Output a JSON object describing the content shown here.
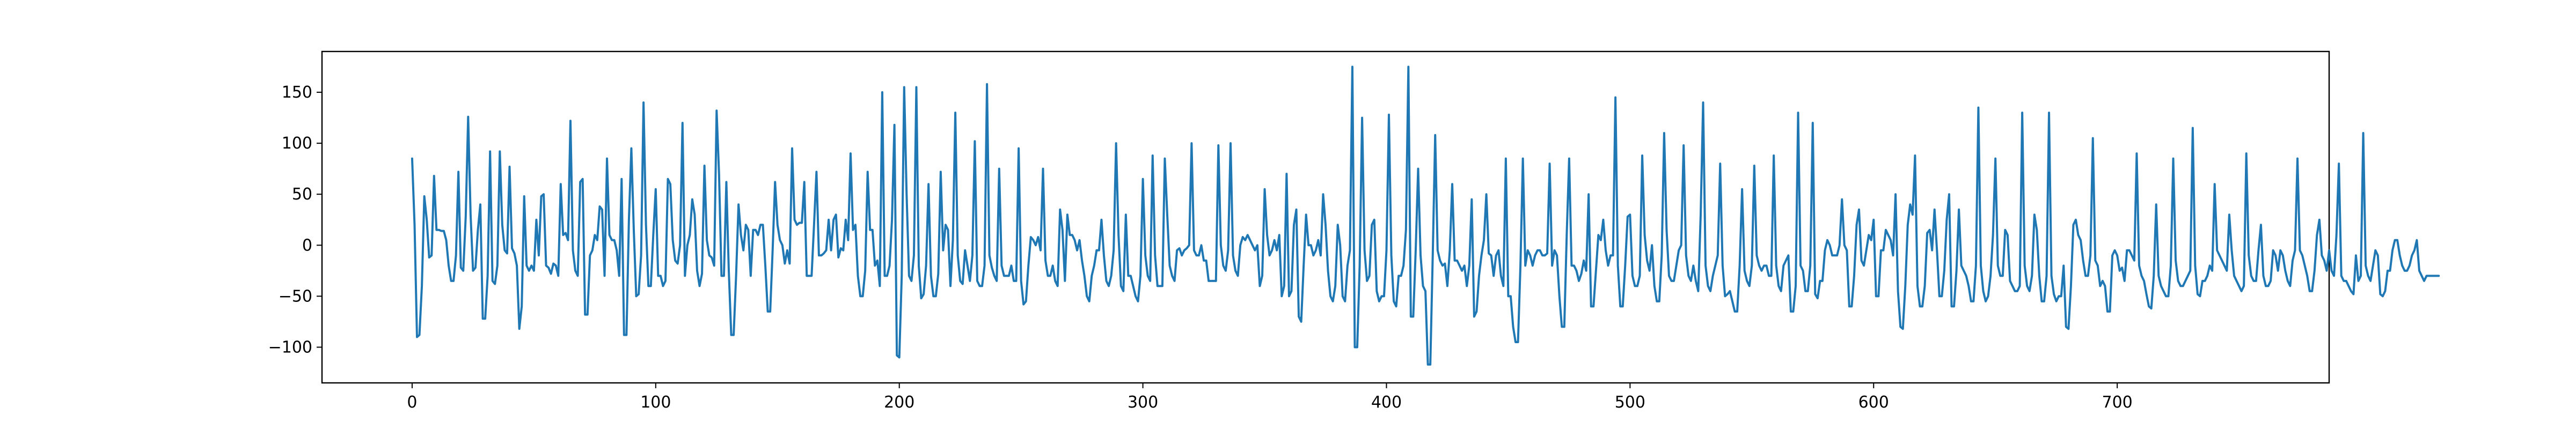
{
  "chart_data": {
    "type": "line",
    "title": "",
    "xlabel": "",
    "ylabel": "",
    "xlim": [
      -37,
      787
    ],
    "ylim": [
      -135,
      190
    ],
    "x_ticks": [
      0,
      100,
      200,
      300,
      400,
      500,
      600,
      700
    ],
    "y_ticks": [
      -100,
      -50,
      0,
      50,
      100,
      150
    ],
    "x_tick_labels": [
      "0",
      "100",
      "200",
      "300",
      "400",
      "500",
      "600",
      "700"
    ],
    "y_tick_labels": [
      "−100",
      "−50",
      "0",
      "50",
      "100",
      "150"
    ],
    "grid": false,
    "series": [
      {
        "color": "#1f77b4",
        "x_start": 0,
        "x_step": 1,
        "values": [
          85,
          20,
          -90,
          -88,
          -40,
          48,
          25,
          -12,
          -10,
          68,
          15,
          15,
          14,
          14,
          5,
          -20,
          -35,
          -35,
          -10,
          72,
          -22,
          -25,
          28,
          126,
          30,
          -25,
          -22,
          15,
          40,
          -72,
          -72,
          -30,
          92,
          -35,
          -38,
          -20,
          92,
          20,
          -5,
          -8,
          77,
          -3,
          -8,
          -20,
          -82,
          -60,
          48,
          -20,
          -25,
          -20,
          -25,
          25,
          -10,
          48,
          50,
          -20,
          -22,
          -28,
          -18,
          -20,
          -30,
          60,
          10,
          12,
          5,
          122,
          -5,
          -25,
          -30,
          62,
          65,
          -68,
          -68,
          -10,
          -5,
          10,
          5,
          38,
          35,
          -30,
          85,
          10,
          5,
          5,
          -5,
          -30,
          65,
          -88,
          -88,
          25,
          95,
          15,
          -50,
          -48,
          -10,
          140,
          20,
          -40,
          -40,
          10,
          55,
          -30,
          -30,
          -40,
          -35,
          65,
          60,
          5,
          -15,
          -18,
          0,
          120,
          -30,
          0,
          10,
          45,
          30,
          -25,
          -40,
          -28,
          78,
          5,
          -10,
          -12,
          -20,
          132,
          70,
          -30,
          -30,
          62,
          -25,
          -88,
          -88,
          -30,
          40,
          10,
          -5,
          20,
          15,
          -30,
          15,
          15,
          10,
          20,
          20,
          -20,
          -65,
          -65,
          -5,
          62,
          20,
          5,
          0,
          -18,
          -5,
          -18,
          95,
          25,
          20,
          22,
          22,
          62,
          -30,
          -30,
          -30,
          20,
          72,
          -10,
          -10,
          -8,
          -5,
          25,
          -5,
          25,
          30,
          -12,
          -3,
          -5,
          25,
          5,
          90,
          15,
          20,
          -30,
          -50,
          -50,
          -25,
          72,
          15,
          15,
          -20,
          -15,
          -40,
          150,
          -30,
          -30,
          -20,
          25,
          118,
          -108,
          -110,
          -30,
          155,
          50,
          -30,
          -35,
          -10,
          155,
          -20,
          -52,
          -48,
          -20,
          60,
          -30,
          -50,
          -50,
          -28,
          72,
          -5,
          20,
          15,
          -40,
          5,
          130,
          -10,
          -35,
          -38,
          -5,
          -20,
          -35,
          -10,
          102,
          -35,
          -40,
          -40,
          -20,
          158,
          -10,
          -22,
          -30,
          -35,
          75,
          -20,
          -30,
          -30,
          -30,
          -20,
          -35,
          -35,
          95,
          -35,
          -58,
          -55,
          -20,
          8,
          5,
          0,
          8,
          -5,
          75,
          -15,
          -30,
          -30,
          -20,
          -35,
          -40,
          35,
          15,
          -35,
          30,
          10,
          10,
          5,
          -5,
          5,
          -15,
          -30,
          -50,
          -55,
          -30,
          -20,
          -5,
          -5,
          25,
          -10,
          -35,
          -40,
          -30,
          -5,
          100,
          10,
          -40,
          -45,
          30,
          -30,
          -30,
          -40,
          -50,
          -55,
          -30,
          65,
          -10,
          -30,
          -35,
          88,
          -10,
          -40,
          -40,
          -40,
          85,
          30,
          -20,
          -30,
          -35,
          -5,
          -3,
          -10,
          -5,
          -3,
          0,
          100,
          -5,
          -10,
          -10,
          0,
          -15,
          -15,
          -35,
          -35,
          -35,
          -35,
          98,
          0,
          -20,
          -25,
          -5,
          100,
          -10,
          -25,
          -30,
          0,
          8,
          5,
          10,
          5,
          0,
          -5,
          0,
          -40,
          -30,
          55,
          10,
          -10,
          -5,
          5,
          -5,
          10,
          -50,
          -40,
          70,
          -50,
          -45,
          20,
          35,
          -70,
          -75,
          -20,
          30,
          0,
          0,
          -10,
          -5,
          5,
          -10,
          50,
          20,
          -25,
          -50,
          -55,
          -40,
          20,
          0,
          -50,
          -55,
          -20,
          -5,
          175,
          -100,
          -100,
          -20,
          125,
          -5,
          -35,
          -30,
          20,
          25,
          -45,
          -55,
          -50,
          -50,
          -5,
          128,
          -10,
          -55,
          -60,
          -30,
          -30,
          -20,
          15,
          175,
          -70,
          -70,
          -5,
          75,
          -10,
          -40,
          -45,
          -117,
          -117,
          -10,
          108,
          -5,
          -15,
          -20,
          -18,
          -40,
          -5,
          60,
          -15,
          -15,
          -20,
          -25,
          -20,
          -40,
          -20,
          45,
          -70,
          -65,
          -30,
          -10,
          5,
          50,
          -8,
          -10,
          -30,
          -10,
          -5,
          -30,
          -40,
          85,
          -50,
          -50,
          -80,
          -95,
          -95,
          -20,
          85,
          -20,
          -5,
          -10,
          -20,
          -10,
          -5,
          -5,
          -10,
          -10,
          -8,
          80,
          -20,
          -5,
          -10,
          -50,
          -80,
          -80,
          10,
          85,
          -20,
          -20,
          -25,
          -35,
          -28,
          -15,
          -25,
          50,
          -60,
          -60,
          -25,
          10,
          5,
          25,
          -5,
          -20,
          -10,
          -10,
          145,
          -20,
          -60,
          -60,
          -20,
          28,
          30,
          -30,
          -40,
          -40,
          -30,
          88,
          10,
          -15,
          -25,
          0,
          -40,
          -55,
          -55,
          -10,
          110,
          15,
          -30,
          -35,
          -35,
          -20,
          -5,
          0,
          98,
          -10,
          -30,
          -35,
          -20,
          -35,
          -45,
          30,
          140,
          -20,
          -40,
          -45,
          -30,
          -20,
          -10,
          80,
          -20,
          -50,
          -48,
          -45,
          -55,
          -65,
          -65,
          -20,
          55,
          -25,
          -35,
          -40,
          -20,
          78,
          -10,
          -20,
          -25,
          -20,
          -20,
          -30,
          -30,
          88,
          -20,
          -40,
          -45,
          -20,
          -15,
          -10,
          -65,
          -65,
          -40,
          130,
          -20,
          -25,
          -45,
          -45,
          -20,
          120,
          -48,
          -52,
          -35,
          -35,
          -5,
          5,
          0,
          -10,
          -10,
          -10,
          0,
          45,
          0,
          -5,
          -60,
          -60,
          -30,
          20,
          35,
          -15,
          -20,
          -5,
          10,
          5,
          25,
          -50,
          -50,
          -5,
          -5,
          15,
          10,
          5,
          -10,
          50,
          -45,
          -80,
          -82,
          -40,
          20,
          40,
          30,
          88,
          -40,
          -60,
          -60,
          -40,
          12,
          15,
          -5,
          35,
          -5,
          -50,
          -50,
          -25,
          25,
          50,
          -60,
          -60,
          -25,
          35,
          -20,
          -25,
          -30,
          -40,
          -55,
          -55,
          -20,
          135,
          -20,
          -45,
          -55,
          -50,
          -30,
          10,
          85,
          -20,
          -30,
          -30,
          15,
          10,
          -35,
          -40,
          -45,
          -45,
          -40,
          130,
          -20,
          -40,
          -45,
          -30,
          30,
          15,
          -30,
          -55,
          -55,
          -30,
          130,
          -30,
          -48,
          -55,
          -50,
          -50,
          -20,
          -80,
          -82,
          -40,
          20,
          25,
          10,
          5,
          -15,
          -30,
          -30,
          -10,
          105,
          -15,
          -20,
          -40,
          -35,
          -40,
          -65,
          -65,
          -10,
          -5,
          -10,
          -25,
          -22,
          -35,
          -5,
          -5,
          -10,
          -15,
          90,
          -20,
          -30,
          -35,
          -48,
          -60,
          -62,
          -30,
          40,
          -30,
          -40,
          -45,
          -50,
          -50,
          -20,
          85,
          -15,
          -35,
          -40,
          -40,
          -35,
          -30,
          -25,
          115,
          -20,
          -48,
          -50,
          -35,
          -35,
          -30,
          -20,
          -25,
          60,
          -5,
          -10,
          -15,
          -20,
          -25,
          30,
          -5,
          -30,
          -35,
          -40,
          -45,
          -40,
          90,
          -10,
          -30,
          -35,
          -35,
          -5,
          20,
          -30,
          -40,
          -40,
          -35,
          -5,
          -10,
          -25,
          -5,
          -10,
          -25,
          -35,
          -40,
          -15,
          -5,
          85,
          -5,
          -10,
          -20,
          -30,
          -45,
          -45,
          -25,
          10,
          25,
          -10,
          -15,
          -25,
          -5,
          -25,
          -30,
          10,
          80,
          -30,
          -35,
          -35,
          -40,
          -45,
          -48,
          -10,
          -35,
          -30,
          110,
          -20,
          -30,
          -35,
          -20,
          -5,
          -10,
          -48,
          -50,
          -45,
          -25,
          -25,
          -5,
          5,
          5,
          -10,
          -20,
          -25,
          -25,
          -20,
          -10,
          -5,
          5,
          -25,
          -30,
          -35,
          -30,
          -30,
          -30,
          -30,
          -30,
          -30
        ]
      }
    ]
  }
}
